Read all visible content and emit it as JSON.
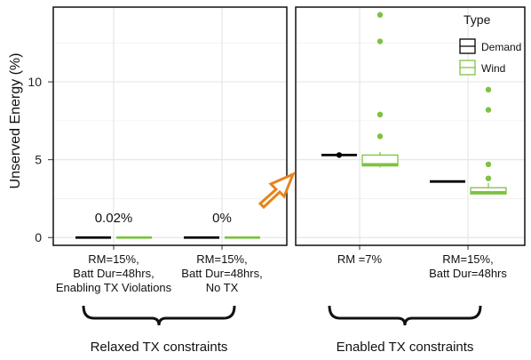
{
  "chart_data": {
    "type": "box",
    "ylabel": "Unserved Energy (%)",
    "ylim": [
      -0.5,
      14.8
    ],
    "yticks": [
      0,
      5,
      10
    ],
    "legend": {
      "title": "Type",
      "placement": "top-right",
      "entries": [
        {
          "name": "Demand",
          "color": "#000000"
        },
        {
          "name": "Wind",
          "color": "#7dc242"
        }
      ]
    },
    "panels": [
      {
        "group_label": "Relaxed TX constraints",
        "categories": [
          {
            "label": [
              "RM=15%,",
              "Batt Dur=48hrs,",
              "Enabling TX Violations"
            ],
            "annotation": "0.02%",
            "demand": {
              "median": 0.0,
              "q1": 0.0,
              "q3": 0.0,
              "outliers": []
            },
            "wind": {
              "median": 0.0,
              "q1": 0.0,
              "q3": 0.0,
              "outliers": []
            }
          },
          {
            "label": [
              "RM=15%,",
              "Batt Dur=48hrs,",
              "No TX"
            ],
            "annotation": "0%",
            "demand": {
              "median": 0.0,
              "q1": 0.0,
              "q3": 0.0,
              "outliers": []
            },
            "wind": {
              "median": 0.0,
              "q1": 0.0,
              "q3": 0.0,
              "outliers": []
            }
          }
        ]
      },
      {
        "group_label": "Enabled TX constraints",
        "categories": [
          {
            "label": [
              "RM =7%"
            ],
            "annotation": "",
            "demand": {
              "median": 5.3,
              "q1": 5.3,
              "q3": 5.3,
              "outliers": [
                5.3
              ]
            },
            "wind": {
              "median": 4.7,
              "q1": 4.6,
              "q3": 5.3,
              "whisker_low": 4.5,
              "whisker_high": 5.5,
              "outliers": [
                14.3,
                12.6,
                7.9,
                6.5
              ]
            }
          },
          {
            "label": [
              "RM=15%,",
              "Batt Dur=48hrs"
            ],
            "annotation": "",
            "demand": {
              "median": 3.6,
              "q1": 3.6,
              "q3": 3.6,
              "outliers": []
            },
            "wind": {
              "median": 2.9,
              "q1": 2.8,
              "q3": 3.2,
              "whisker_low": 2.8,
              "whisker_high": 3.5,
              "outliers": [
                9.5,
                8.2,
                4.7,
                3.8
              ]
            }
          }
        ]
      }
    ]
  }
}
